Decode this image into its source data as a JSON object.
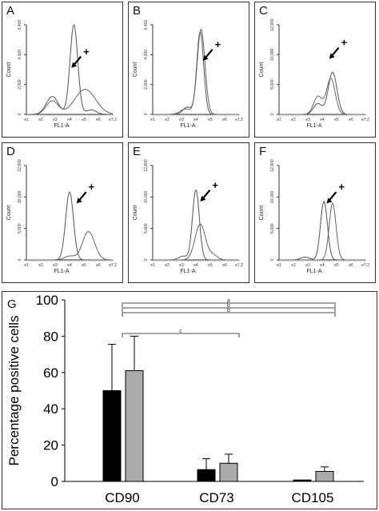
{
  "histograms": [
    {
      "label": "A",
      "ymax": 6400,
      "yticks": [
        "0",
        "2,000",
        "4,000",
        "6,400"
      ],
      "xlabel": "FL1-A",
      "ylabel": "Count",
      "marker": "+",
      "mode": "A"
    },
    {
      "label": "B",
      "ymax": 6400,
      "yticks": [
        "0",
        "2,000",
        "4,000",
        "6,400"
      ],
      "xlabel": "FL1-A",
      "ylabel": "Count",
      "marker": "+",
      "mode": "B"
    },
    {
      "label": "C",
      "ymax": 12800,
      "yticks": [
        "0",
        "5,000",
        "10,000",
        "12,800"
      ],
      "xlabel": "FL1-A",
      "ylabel": "Count",
      "marker": "+",
      "mode": "C"
    },
    {
      "label": "D",
      "ymax": 12800,
      "yticks": [
        "0",
        "5,000",
        "10,000",
        "12,800"
      ],
      "xlabel": "FL1-A",
      "ylabel": "Count",
      "marker": "+",
      "mode": "D"
    },
    {
      "label": "E",
      "ymax": 12800,
      "yticks": [
        "0",
        "5,000",
        "10,000",
        "12,800"
      ],
      "xlabel": "FL1-A",
      "ylabel": "Count",
      "marker": "+",
      "mode": "E"
    },
    {
      "label": "F",
      "ymax": 12800,
      "yticks": [
        "0",
        "5,000",
        "10,000",
        "12,800"
      ],
      "xlabel": "FL1-A",
      "ylabel": "Count",
      "marker": "+",
      "mode": "F"
    }
  ],
  "xtick_labels": [
    "e1",
    "e2",
    "e3",
    "e4",
    "e5",
    "e6",
    "e7.2"
  ],
  "chart_data": {
    "type": "bar",
    "panel_label": "G",
    "title": "",
    "xlabel": "",
    "ylabel": "Percentage positive cells",
    "ylim": [
      0,
      100
    ],
    "yticks": [
      0,
      20,
      40,
      60,
      80,
      100
    ],
    "categories": [
      "CD90",
      "CD73",
      "CD105"
    ],
    "series": [
      {
        "color": "#000000",
        "values": [
          50,
          6.5,
          0.8
        ],
        "errors": [
          25.5,
          6,
          0
        ]
      },
      {
        "color": "#aaaaaa",
        "values": [
          61,
          10,
          5.5
        ],
        "errors": [
          19,
          5,
          2.5
        ]
      }
    ],
    "significance": [
      {
        "label": "a",
        "from": "CD90",
        "to": "CD105"
      },
      {
        "label": "b",
        "from": "CD90",
        "to": "CD105"
      },
      {
        "label": "b",
        "from": "CD90",
        "to": "CD105"
      },
      {
        "label": "c",
        "from": "CD90",
        "to": "CD73"
      }
    ]
  }
}
